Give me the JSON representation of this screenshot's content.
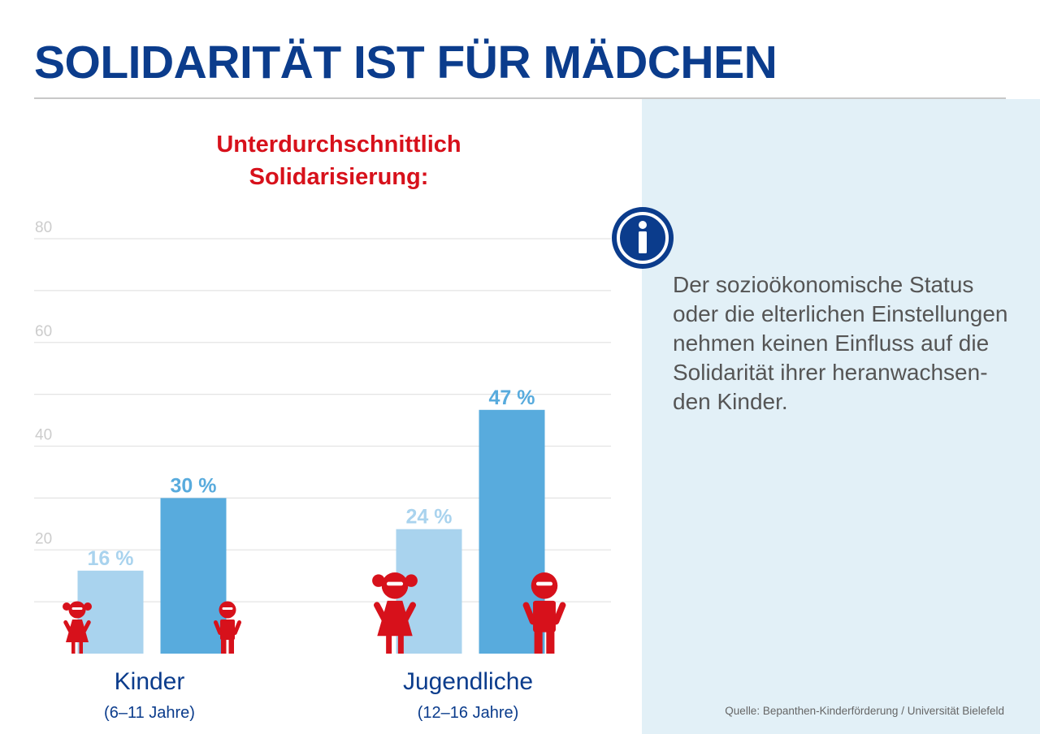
{
  "title": "SOLIDARITÄT IST FÜR MÄDCHEN",
  "info": {
    "icon": "info-icon",
    "text": "Der sozioökonomische Status\noder die elterlichen Einstellungen\nnehmen keinen Einfluss auf die\nSolidarität ihrer heranwachsen-\nden Kinder."
  },
  "source": "Quelle: Bepanthen-Kinderförderung / Universität Bielefeld",
  "colors": {
    "title": "#0b3c8c",
    "subtitle": "#d7111b",
    "series_light": "#a9d3ee",
    "series_dark": "#58abdd",
    "icon_red": "#d7111b",
    "panel": "#e2f0f7"
  },
  "chart_data": {
    "type": "bar",
    "title_lines": [
      "Unterdurchschnittlich",
      "Solidarisierung:"
    ],
    "ylim": [
      0,
      80
    ],
    "yticks": [
      20,
      40,
      60,
      80
    ],
    "grid": true,
    "groups": [
      {
        "label": "Kinder",
        "sublabel": "(6–11 Jahre)"
      },
      {
        "label": "Jugendliche",
        "sublabel": "(12–16 Jahre)"
      }
    ],
    "series": [
      {
        "icon": "girl-icon",
        "color": "#a9d3ee",
        "values": [
          16,
          24
        ],
        "labels": [
          "16 %",
          "24 %"
        ]
      },
      {
        "icon": "boy-icon",
        "color": "#58abdd",
        "values": [
          30,
          47
        ],
        "labels": [
          "30 %",
          "47 %"
        ]
      }
    ]
  }
}
